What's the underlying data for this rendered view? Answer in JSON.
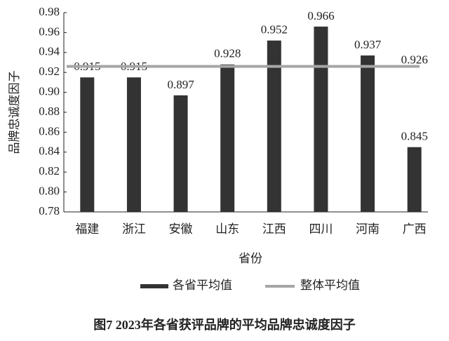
{
  "chart_data": {
    "type": "bar",
    "title": "图7 2023年各省获评品牌的平均品牌忠诚度因子",
    "x_label": "省份",
    "y_label": "品牌忠诚度因子",
    "categories": [
      "福建",
      "浙江",
      "安徽",
      "山东",
      "江西",
      "四川",
      "河南",
      "广西"
    ],
    "series": [
      {
        "name": "各省平均值",
        "color": "#333333",
        "values": [
          0.915,
          0.915,
          0.897,
          0.928,
          0.952,
          0.966,
          0.937,
          0.845
        ]
      }
    ],
    "reference_line": {
      "name": "整体平均值",
      "color": "#a6a6a6",
      "value": 0.926
    },
    "ylim": [
      0.78,
      0.98
    ],
    "yticks": [
      0.78,
      {
        "value": 0.8,
        "label": "0.80"
      },
      0.82,
      0.84,
      0.86,
      0.88,
      {
        "value": 0.9,
        "label": "0.90"
      },
      0.92,
      0.94,
      0.96,
      0.98
    ]
  }
}
